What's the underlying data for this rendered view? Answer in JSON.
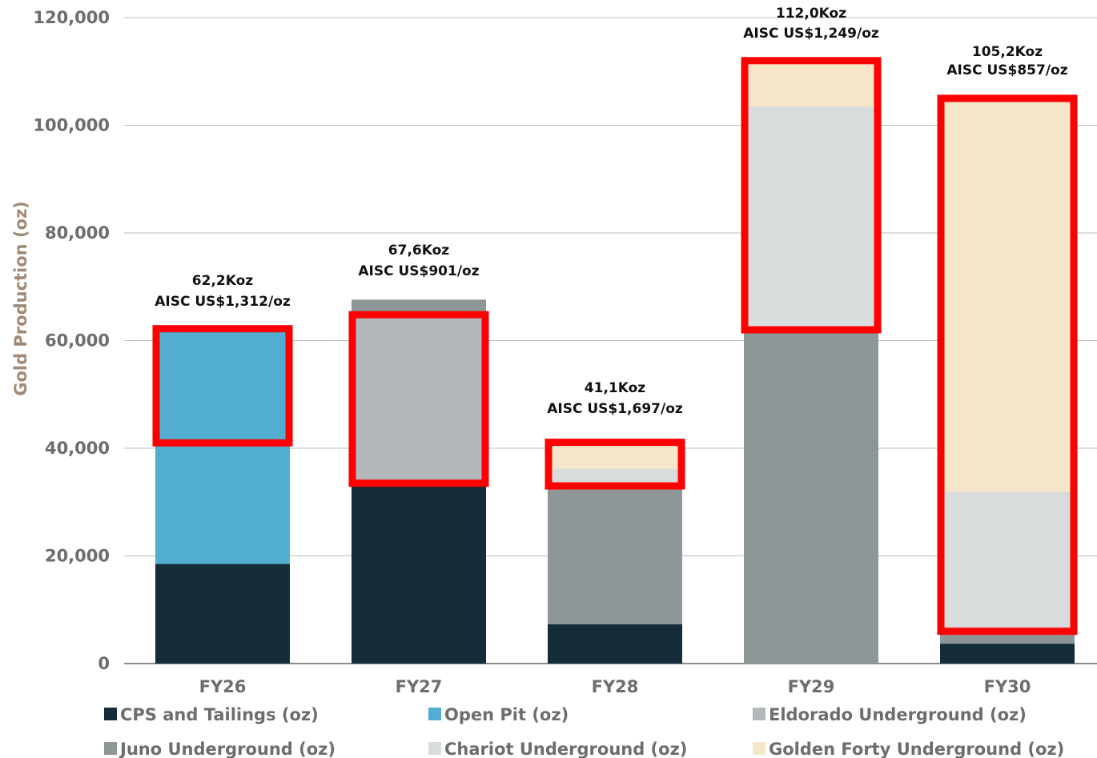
{
  "chart_data": {
    "type": "bar",
    "stacked": true,
    "ylabel": "Gold Production (oz)",
    "ylim": [
      0,
      120000
    ],
    "yticks": [
      0,
      20000,
      40000,
      60000,
      80000,
      100000,
      120000
    ],
    "ytick_labels": [
      "0",
      "20,000",
      "40,000",
      "60,000",
      "80,000",
      "100,000",
      "120,000"
    ],
    "grid": true,
    "legend_position": "bottom",
    "categories": [
      "FY26",
      "FY27",
      "FY28",
      "FY29",
      "FY30"
    ],
    "series": [
      {
        "name": "CPS and Tailings (oz)",
        "color": "#142d38",
        "values": [
          18500,
          33500,
          7300,
          0,
          3700
        ]
      },
      {
        "name": "Open Pit (oz)",
        "color": "#52aed0",
        "values": [
          43700,
          0,
          0,
          0,
          0
        ]
      },
      {
        "name": "Eldorado Underground (oz)",
        "color": "#b3b8ba",
        "values": [
          0,
          30800,
          0,
          0,
          0
        ]
      },
      {
        "name": "Juno Underground (oz)",
        "color": "#8e9698",
        "values": [
          0,
          3300,
          25600,
          61800,
          1900
        ]
      },
      {
        "name": "Chariot Underground (oz)",
        "color": "#d9dcdd",
        "values": [
          0,
          0,
          3300,
          41700,
          26300
        ]
      },
      {
        "name": "Golden Forty Underground (oz)",
        "color": "#f5e6c9",
        "values": [
          0,
          0,
          4900,
          8500,
          73300
        ]
      }
    ],
    "annotations": [
      {
        "category": "FY26",
        "line1": "62,2Koz",
        "line2": "AISC US$1,312/oz"
      },
      {
        "category": "FY27",
        "line1": "67,6Koz",
        "line2": "AISC US$901/oz"
      },
      {
        "category": "FY28",
        "line1": "41,1Koz",
        "line2": "AISC US$1,697/oz"
      },
      {
        "category": "FY29",
        "line1": "112,0Koz",
        "line2": "AISC US$1,249/oz"
      },
      {
        "category": "FY30",
        "line1": "105,2Koz",
        "line2": "AISC US$857/oz"
      }
    ],
    "highlight_boxes": [
      {
        "category": "FY26",
        "range": [
          41000,
          62200
        ]
      },
      {
        "category": "FY27",
        "range": [
          33500,
          64800
        ]
      },
      {
        "category": "FY28",
        "range": [
          33000,
          41100
        ]
      },
      {
        "category": "FY29",
        "range": [
          62000,
          112000
        ]
      },
      {
        "category": "FY30",
        "range": [
          6000,
          105000
        ]
      }
    ],
    "highlight_color": "#ff0000"
  }
}
